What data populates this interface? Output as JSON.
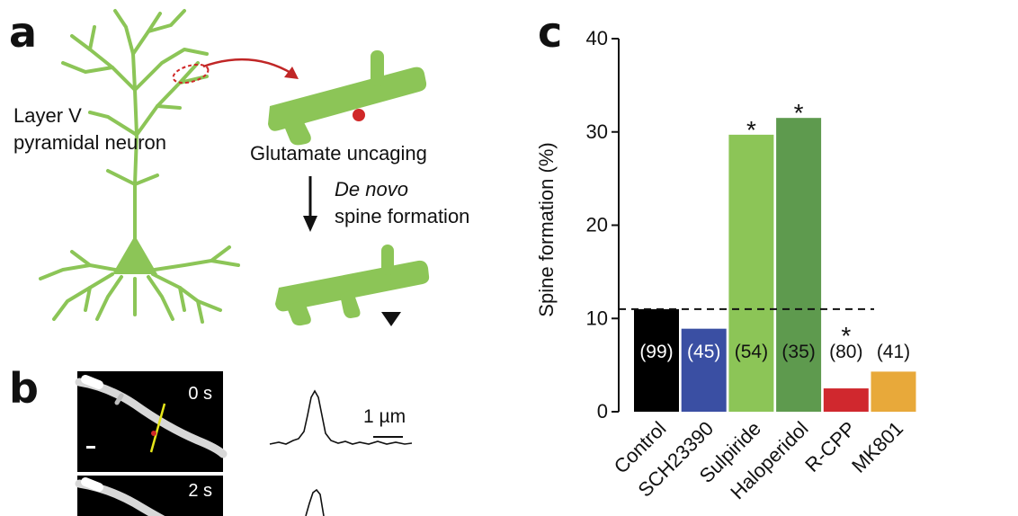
{
  "panel_a": {
    "letter": "a",
    "neuron_label_line1": "Layer V",
    "neuron_label_line2": "pyramidal neuron",
    "step1_label": "Glutamate uncaging",
    "step2_italic": "De novo",
    "step2_label": "spine formation",
    "neuron_color": "#8cc557",
    "uncaging_color": "#d02828"
  },
  "panel_b": {
    "letter": "b",
    "time1": "0 s",
    "time2": "2 s",
    "scale_label": "1 µm"
  },
  "panel_c": {
    "letter": "c"
  },
  "chart_data": {
    "type": "bar",
    "categories": [
      "Control",
      "SCH23390",
      "Sulpiride",
      "Haloperidol",
      "R-CPP",
      "MK801"
    ],
    "values": [
      11,
      8.9,
      29.7,
      31.5,
      2.5,
      4.3
    ],
    "n_labels": [
      "(99)",
      "(45)",
      "(54)",
      "(35)",
      "(80)",
      "(41)"
    ],
    "significant": [
      false,
      false,
      true,
      true,
      true,
      false
    ],
    "colors": [
      "#000000",
      "#3a4fa3",
      "#8cc557",
      "#5e9a4e",
      "#d0282e",
      "#e8a93a"
    ],
    "n_label_colors": [
      "#ffffff",
      "#ffffff",
      "#111111",
      "#111111",
      "#111111",
      "#111111"
    ],
    "ylabel": "Spine formation (%)",
    "ylim": [
      0,
      40
    ],
    "yticks": [
      0,
      10,
      20,
      30,
      40
    ],
    "reference_line": 11,
    "significance_mark": "*"
  }
}
